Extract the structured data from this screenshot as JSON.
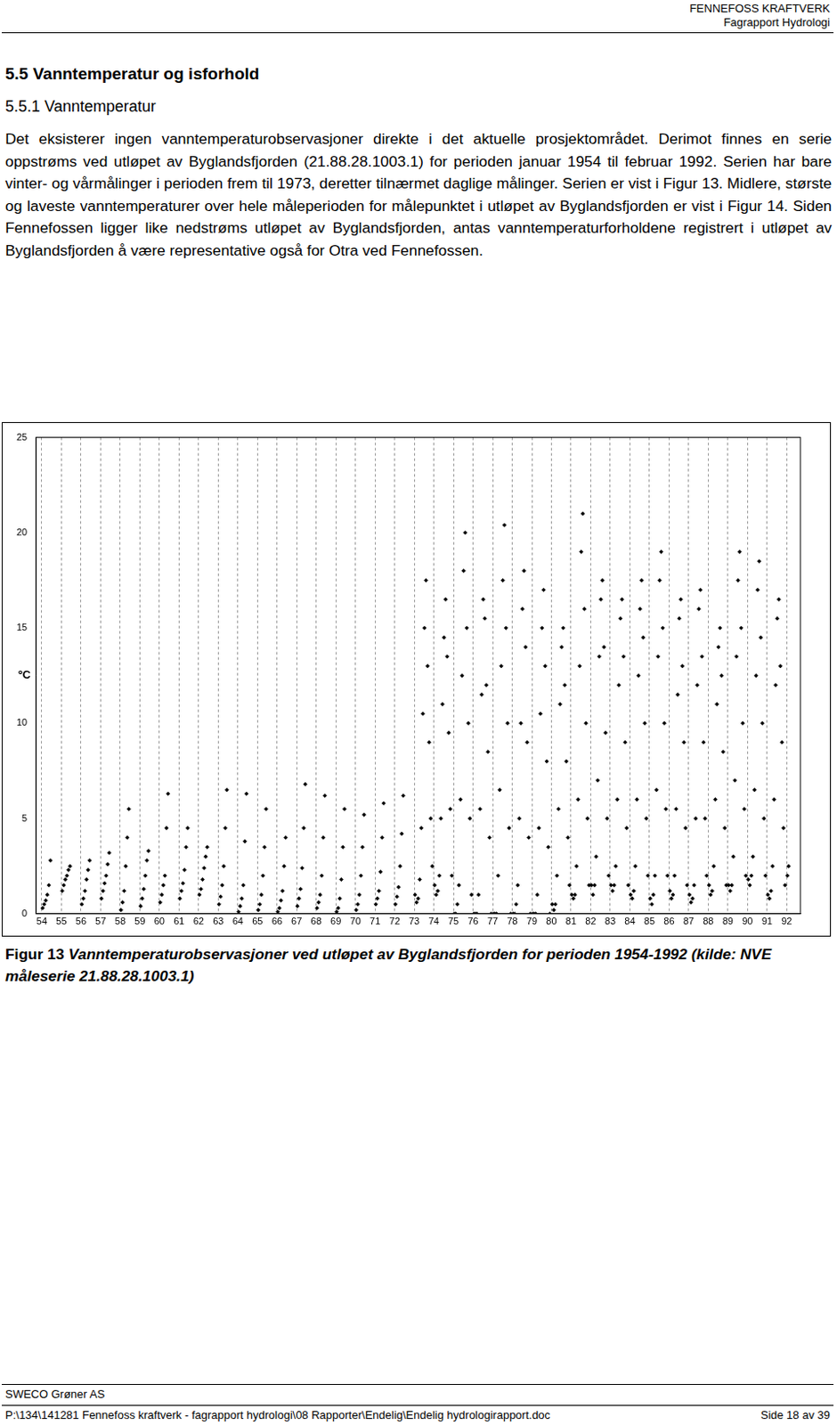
{
  "header": {
    "title": "FENNEFOSS KRAFTVERK",
    "subtitle": "Fagrapport Hydrologi"
  },
  "heading": "5.5 Vanntemperatur og isforhold",
  "subheading": "5.5.1 Vanntemperatur",
  "paragraph": "Det eksisterer ingen vanntemperaturobservasjoner direkte i det aktuelle prosjektområdet. Derimot finnes en serie oppstrøms ved utløpet av Byglandsfjorden (21.88.28.1003.1) for perioden januar 1954 til februar 1992. Serien har bare vinter- og vårmålinger i perioden frem til 1973, deretter tilnærmet daglige målinger. Serien er vist i Figur 13. Midlere, største og laveste vanntemperaturer over hele måleperioden for målepunktet i utløpet av Byglandsfjorden er vist i Figur 14. Siden Fennefossen ligger like nedstrøms utløpet av Byglandsfjorden, antas vanntemperaturforholdene registrert i utløpet av Byglandsfjorden å være representative også for Otra ved Fennefossen.",
  "chart_data": {
    "type": "scatter",
    "ylabel": "ºC",
    "color": "#000000",
    "marker": "diamond",
    "grid": "x",
    "xlim": [
      53.7,
      92.7
    ],
    "xticks": [
      54,
      55,
      56,
      57,
      58,
      59,
      60,
      61,
      62,
      63,
      64,
      65,
      66,
      67,
      68,
      69,
      70,
      71,
      72,
      73,
      74,
      75,
      76,
      77,
      78,
      79,
      80,
      81,
      82,
      83,
      84,
      85,
      86,
      87,
      88,
      89,
      90,
      91,
      92
    ],
    "ylim": [
      0,
      25
    ],
    "yticks": [
      0,
      5,
      10,
      15,
      20,
      25
    ],
    "x": [
      54.04,
      54.12,
      54.2,
      54.28,
      54.36,
      54.44,
      55.04,
      55.12,
      55.2,
      55.28,
      55.36,
      55.44,
      56.04,
      56.12,
      56.2,
      56.28,
      56.36,
      56.44,
      57.04,
      57.12,
      57.2,
      57.28,
      57.36,
      57.44,
      58.04,
      58.12,
      58.2,
      58.28,
      58.36,
      58.44,
      59.04,
      59.12,
      59.2,
      59.28,
      59.36,
      59.44,
      60.04,
      60.12,
      60.2,
      60.28,
      60.36,
      60.44,
      61.04,
      61.12,
      61.2,
      61.28,
      61.36,
      61.44,
      62.04,
      62.12,
      62.2,
      62.28,
      62.36,
      62.44,
      63.04,
      63.12,
      63.2,
      63.28,
      63.36,
      63.44,
      64.04,
      64.12,
      64.2,
      64.28,
      64.36,
      64.44,
      65.04,
      65.12,
      65.2,
      65.28,
      65.36,
      65.44,
      66.04,
      66.12,
      66.2,
      66.28,
      66.36,
      66.44,
      67.04,
      67.12,
      67.2,
      67.28,
      67.36,
      67.44,
      68.04,
      68.12,
      68.2,
      68.28,
      68.36,
      68.44,
      69.04,
      69.12,
      69.2,
      69.28,
      69.36,
      69.44,
      70.04,
      70.12,
      70.2,
      70.28,
      70.36,
      70.44,
      71.04,
      71.12,
      71.2,
      71.28,
      71.36,
      71.44,
      72.04,
      72.12,
      72.2,
      72.28,
      72.36,
      72.44,
      73.04,
      73.12,
      73.2,
      73.28,
      73.36,
      73.44,
      73.52,
      73.6,
      73.68,
      73.76,
      73.84,
      73.92,
      74.04,
      74.12,
      74.2,
      74.28,
      74.36,
      74.44,
      74.52,
      74.6,
      74.68,
      74.76,
      74.84,
      74.92,
      75.04,
      75.12,
      75.2,
      75.28,
      75.36,
      75.44,
      75.52,
      75.6,
      75.68,
      75.76,
      75.84,
      75.92,
      76.04,
      76.12,
      76.2,
      76.28,
      76.36,
      76.44,
      76.52,
      76.6,
      76.68,
      76.76,
      76.84,
      76.92,
      77.04,
      77.12,
      77.2,
      77.28,
      77.36,
      77.44,
      77.52,
      77.6,
      77.68,
      77.76,
      77.84,
      77.92,
      78.04,
      78.12,
      78.2,
      78.28,
      78.36,
      78.44,
      78.52,
      78.6,
      78.68,
      78.76,
      78.84,
      78.92,
      79.04,
      79.12,
      79.2,
      79.28,
      79.36,
      79.44,
      79.52,
      79.6,
      79.68,
      79.76,
      79.84,
      79.92,
      80.04,
      80.12,
      80.2,
      80.28,
      80.36,
      80.44,
      80.52,
      80.6,
      80.68,
      80.76,
      80.84,
      80.92,
      81.04,
      81.12,
      81.2,
      81.28,
      81.36,
      81.44,
      81.52,
      81.6,
      81.68,
      81.76,
      81.84,
      81.92,
      82.04,
      82.12,
      82.2,
      82.28,
      82.36,
      82.44,
      82.52,
      82.6,
      82.68,
      82.76,
      82.84,
      82.92,
      83.04,
      83.12,
      83.2,
      83.28,
      83.36,
      83.44,
      83.52,
      83.6,
      83.68,
      83.76,
      83.84,
      83.92,
      84.04,
      84.12,
      84.2,
      84.28,
      84.36,
      84.44,
      84.52,
      84.6,
      84.68,
      84.76,
      84.84,
      84.92,
      85.04,
      85.12,
      85.2,
      85.28,
      85.36,
      85.44,
      85.52,
      85.6,
      85.68,
      85.76,
      85.84,
      85.92,
      86.04,
      86.12,
      86.2,
      86.28,
      86.36,
      86.44,
      86.52,
      86.6,
      86.68,
      86.76,
      86.84,
      86.92,
      87.04,
      87.12,
      87.2,
      87.28,
      87.36,
      87.44,
      87.52,
      87.6,
      87.68,
      87.76,
      87.84,
      87.92,
      88.04,
      88.12,
      88.2,
      88.28,
      88.36,
      88.44,
      88.52,
      88.6,
      88.68,
      88.76,
      88.84,
      88.92,
      89.04,
      89.12,
      89.2,
      89.28,
      89.36,
      89.44,
      89.52,
      89.6,
      89.68,
      89.76,
      89.84,
      89.92,
      90.04,
      90.12,
      90.2,
      90.28,
      90.36,
      90.44,
      90.52,
      90.6,
      90.68,
      90.76,
      90.84,
      90.92,
      91.04,
      91.12,
      91.2,
      91.28,
      91.36,
      91.44,
      91.52,
      91.6,
      91.68,
      91.76,
      91.84,
      91.92,
      92.04,
      92.1
    ],
    "values": [
      0.3,
      0.5,
      0.7,
      1.0,
      1.5,
      2.8,
      1.2,
      1.5,
      1.8,
      2.0,
      2.3,
      2.5,
      0.5,
      0.8,
      1.2,
      1.8,
      2.3,
      2.8,
      0.8,
      1.2,
      1.6,
      2.0,
      2.6,
      3.2,
      0.2,
      0.6,
      1.2,
      2.5,
      4.0,
      5.5,
      0.4,
      0.8,
      1.3,
      2.0,
      2.8,
      3.3,
      0.6,
      1.0,
      1.5,
      2.0,
      4.5,
      6.3,
      0.8,
      1.2,
      1.6,
      2.3,
      3.5,
      4.5,
      1.0,
      1.3,
      1.8,
      2.4,
      3.0,
      3.5,
      0.5,
      0.9,
      1.5,
      2.5,
      4.5,
      6.5,
      0.1,
      0.4,
      0.8,
      1.5,
      3.8,
      6.3,
      0.2,
      0.5,
      1.0,
      2.0,
      3.5,
      5.5,
      0.1,
      0.3,
      0.7,
      1.2,
      2.5,
      4.0,
      0.4,
      0.8,
      1.3,
      2.4,
      4.5,
      6.8,
      0.3,
      0.6,
      1.0,
      2.0,
      4.0,
      6.2,
      0.1,
      0.3,
      0.8,
      1.8,
      3.5,
      5.5,
      0.2,
      0.5,
      1.0,
      2.0,
      3.5,
      5.2,
      0.5,
      0.8,
      1.2,
      2.2,
      4.0,
      5.8,
      0.5,
      0.9,
      1.4,
      2.5,
      4.2,
      6.2,
      1.0,
      0.6,
      0.8,
      1.8,
      4.5,
      10.5,
      15.0,
      17.5,
      13.0,
      9.0,
      5.0,
      2.5,
      1.5,
      1.0,
      1.2,
      2.0,
      5.0,
      11.0,
      14.5,
      16.5,
      13.5,
      9.5,
      5.5,
      2.0,
      0.0,
      0.0,
      0.5,
      1.5,
      6.0,
      12.5,
      18.0,
      20.0,
      15.0,
      10.0,
      5.0,
      1.0,
      0.0,
      0.0,
      0.0,
      1.0,
      5.5,
      11.5,
      16.5,
      15.5,
      12.0,
      8.5,
      4.0,
      0.0,
      0.0,
      0.0,
      0.0,
      2.0,
      6.5,
      13.0,
      17.5,
      20.4,
      15.0,
      10.0,
      4.5,
      0.0,
      0.0,
      0.0,
      0.5,
      1.5,
      5.0,
      10.0,
      16.0,
      18.0,
      14.0,
      9.0,
      4.0,
      0.0,
      0.0,
      0.0,
      0.0,
      1.0,
      4.5,
      10.5,
      15.0,
      17.0,
      13.0,
      8.0,
      3.5,
      0.0,
      0.5,
      0.2,
      0.5,
      2.0,
      5.5,
      11.0,
      14.0,
      15.0,
      12.0,
      8.0,
      4.0,
      1.5,
      1.0,
      0.8,
      1.0,
      2.5,
      6.0,
      13.0,
      19.0,
      21.0,
      16.0,
      10.0,
      5.0,
      1.5,
      1.5,
      1.0,
      1.5,
      3.0,
      7.0,
      13.5,
      16.5,
      17.5,
      14.0,
      9.5,
      5.0,
      2.0,
      1.5,
      1.2,
      1.5,
      2.5,
      6.0,
      12.0,
      15.5,
      16.5,
      13.5,
      9.0,
      4.5,
      1.5,
      1.0,
      0.8,
      1.2,
      2.5,
      6.0,
      12.5,
      16.0,
      17.5,
      14.5,
      10.0,
      5.0,
      2.0,
      0.8,
      0.5,
      1.0,
      2.0,
      6.5,
      13.5,
      17.5,
      19.0,
      15.0,
      10.0,
      5.5,
      2.0,
      1.2,
      0.8,
      1.0,
      2.0,
      5.5,
      11.5,
      15.5,
      16.5,
      13.0,
      9.0,
      4.5,
      1.5,
      1.0,
      0.6,
      0.8,
      1.5,
      5.0,
      12.0,
      16.0,
      17.0,
      13.5,
      9.0,
      5.0,
      2.0,
      1.5,
      1.0,
      1.2,
      2.5,
      6.0,
      11.0,
      14.0,
      15.0,
      12.5,
      8.5,
      4.5,
      1.5,
      1.5,
      1.2,
      1.5,
      3.0,
      7.0,
      13.5,
      17.5,
      19.0,
      15.0,
      10.0,
      5.5,
      2.0,
      1.8,
      1.5,
      2.0,
      3.0,
      6.5,
      12.5,
      17.0,
      18.5,
      14.5,
      10.0,
      5.0,
      2.0,
      1.0,
      0.8,
      1.2,
      2.5,
      6.0,
      12.0,
      15.5,
      16.5,
      13.0,
      9.0,
      4.5,
      1.5,
      2.0,
      2.5
    ]
  },
  "caption": {
    "label": "Figur 13",
    "text": "Vanntemperaturobservasjoner ved utløpet av Byglandsfjorden for perioden 1954-1992 (kilde: NVE måleserie 21.88.28.1003.1)"
  },
  "footer": {
    "company": "SWECO Grøner AS",
    "path": "P:\\134\\141281 Fennefoss kraftverk - fagrapport hydrologi\\08 Rapporter\\Endelig\\Endelig hydrologirapport.doc",
    "page": "Side 18 av 39"
  }
}
